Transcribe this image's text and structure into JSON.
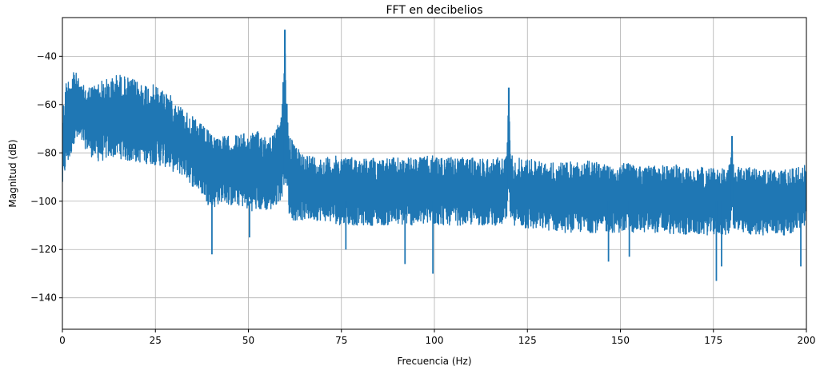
{
  "chart_data": {
    "type": "line",
    "title": "FFT en decibelios",
    "xlabel": "Frecuencia (Hz)",
    "ylabel": "Magnitud (dB)",
    "xlim": [
      0,
      200
    ],
    "ylim": [
      -153,
      -24
    ],
    "grid": true,
    "legend": "none",
    "color": "#1f77b4",
    "x_ticks": [
      0,
      25,
      50,
      75,
      100,
      125,
      150,
      175,
      200
    ],
    "y_ticks": [
      -140,
      -120,
      -100,
      -80,
      -60,
      -40
    ],
    "series": [
      {
        "x": [
          0,
          1,
          2,
          3,
          5,
          8,
          10,
          13,
          15,
          18,
          20,
          25,
          28,
          30,
          33,
          35,
          38,
          40,
          43,
          45,
          48,
          50,
          53,
          55,
          57,
          58,
          59,
          59.8,
          60.5,
          61,
          62,
          63,
          65,
          70,
          75,
          80,
          85,
          90,
          95,
          100,
          105,
          110,
          115,
          118,
          119.5,
          120,
          120.5,
          122,
          125,
          130,
          135,
          140,
          145,
          150,
          155,
          160,
          165,
          170,
          175,
          178,
          179.5,
          180,
          180.5,
          182,
          185,
          190,
          195,
          200
        ],
        "upper": [
          -62,
          -50,
          -48,
          -44,
          -52,
          -52,
          -50,
          -49,
          -47,
          -49,
          -50,
          -52,
          -54,
          -58,
          -62,
          -65,
          -69,
          -72,
          -73,
          -73,
          -72,
          -72,
          -71,
          -72,
          -72,
          -68,
          -62,
          -29,
          -62,
          -70,
          -76,
          -78,
          -80,
          -82,
          -81,
          -82,
          -82,
          -82,
          -82,
          -81,
          -82,
          -82,
          -82,
          -82,
          -80,
          -53,
          -80,
          -82,
          -82,
          -84,
          -84,
          -83,
          -84,
          -84,
          -85,
          -85,
          -85,
          -86,
          -86,
          -86,
          -84,
          -73,
          -84,
          -86,
          -86,
          -87,
          -87,
          -85
        ],
        "lower": [
          -96,
          -86,
          -84,
          -76,
          -76,
          -82,
          -84,
          -82,
          -82,
          -84,
          -84,
          -85,
          -86,
          -88,
          -90,
          -94,
          -98,
          -104,
          -100,
          -102,
          -102,
          -104,
          -104,
          -104,
          -104,
          -100,
          -100,
          -90,
          -100,
          -106,
          -108,
          -108,
          -108,
          -108,
          -110,
          -110,
          -110,
          -110,
          -110,
          -110,
          -110,
          -110,
          -110,
          -110,
          -110,
          -95,
          -110,
          -110,
          -112,
          -112,
          -113,
          -113,
          -113,
          -113,
          -113,
          -113,
          -114,
          -114,
          -114,
          -114,
          -114,
          -100,
          -114,
          -114,
          -114,
          -114,
          -114,
          -110
        ]
      }
    ],
    "dips": [
      {
        "x": 40.2,
        "y": -122
      },
      {
        "x": 50.3,
        "y": -115
      },
      {
        "x": 76.2,
        "y": -120
      },
      {
        "x": 92.1,
        "y": -126
      },
      {
        "x": 99.6,
        "y": -130
      },
      {
        "x": 146.8,
        "y": -125
      },
      {
        "x": 152.4,
        "y": -123
      },
      {
        "x": 175.8,
        "y": -133
      },
      {
        "x": 177.2,
        "y": -127
      },
      {
        "x": 198.5,
        "y": -127
      }
    ]
  }
}
